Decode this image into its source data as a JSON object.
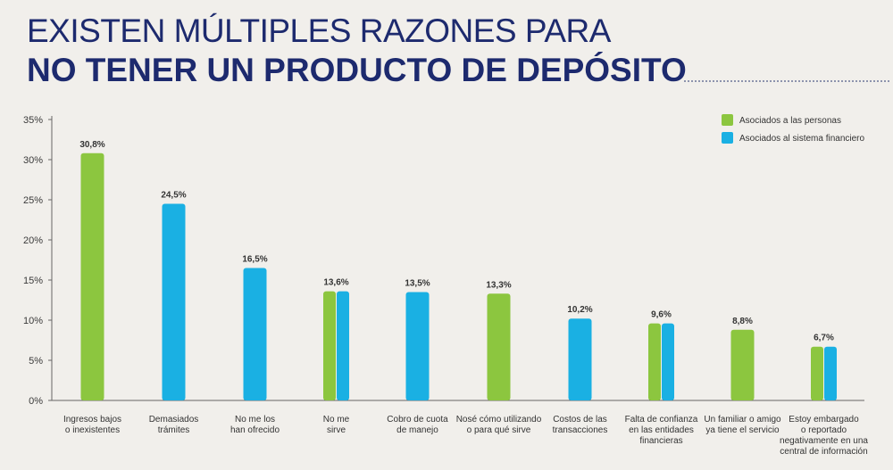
{
  "header": {
    "title_line1": "EXISTEN MÚLTIPLES RAZONES PARA",
    "title_line2": "NO TENER UN PRODUCTO DE DEPÓSITO"
  },
  "colors": {
    "personas": "#8cc63f",
    "sistema": "#1ab0e3",
    "title": "#1d2a6e"
  },
  "chart_data": {
    "type": "bar",
    "ylim": [
      0,
      35
    ],
    "yticks": [
      0,
      5,
      10,
      15,
      20,
      25,
      30,
      35
    ],
    "ytick_labels": [
      "0%",
      "5%",
      "10%",
      "15%",
      "20%",
      "25%",
      "30%",
      "35%"
    ],
    "legend_position": "top-right",
    "legend": [
      {
        "key": "personas",
        "name": "Asociados a las personas"
      },
      {
        "key": "sistema",
        "name": "Asociados al sistema financiero"
      }
    ],
    "categories": [
      {
        "label": [
          "Ingresos bajos",
          "o inexistentes"
        ],
        "value": 30.8,
        "value_label": "30,8%",
        "groups": [
          "personas"
        ]
      },
      {
        "label": [
          "Demasiados",
          "trámites"
        ],
        "value": 24.5,
        "value_label": "24,5%",
        "groups": [
          "sistema"
        ]
      },
      {
        "label": [
          "No me los",
          "han ofrecido"
        ],
        "value": 16.5,
        "value_label": "16,5%",
        "groups": [
          "sistema"
        ]
      },
      {
        "label": [
          "No me",
          "sirve"
        ],
        "value": 13.6,
        "value_label": "13,6%",
        "groups": [
          "personas",
          "sistema"
        ]
      },
      {
        "label": [
          "Cobro de cuota",
          "de manejo"
        ],
        "value": 13.5,
        "value_label": "13,5%",
        "groups": [
          "sistema"
        ]
      },
      {
        "label": [
          "Nosé cómo utilizando",
          "o para qué sirve"
        ],
        "value": 13.3,
        "value_label": "13,3%",
        "groups": [
          "personas"
        ]
      },
      {
        "label": [
          "Costos de las",
          "transacciones"
        ],
        "value": 10.2,
        "value_label": "10,2%",
        "groups": [
          "sistema"
        ]
      },
      {
        "label": [
          "Falta de confianza",
          "en las entidades",
          "financieras"
        ],
        "value": 9.6,
        "value_label": "9,6%",
        "groups": [
          "personas",
          "sistema"
        ]
      },
      {
        "label": [
          "Un familiar o amigo",
          "ya tiene el servicio"
        ],
        "value": 8.8,
        "value_label": "8,8%",
        "groups": [
          "personas"
        ]
      },
      {
        "label": [
          "Estoy embargado",
          "o reportado",
          "negativamente en una",
          "central de información"
        ],
        "value": 6.7,
        "value_label": "6,7%",
        "groups": [
          "personas",
          "sistema"
        ]
      }
    ]
  }
}
